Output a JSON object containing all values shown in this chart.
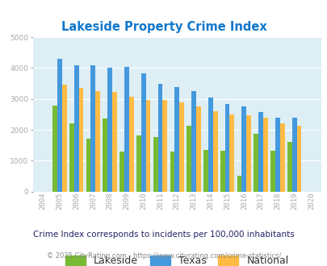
{
  "title": "Lakeside Property Crime Index",
  "years": [
    "2004",
    "2005",
    "2006",
    "2007",
    "2008",
    "2009",
    "2010",
    "2011",
    "2012",
    "2013",
    "2014",
    "2015",
    "2016",
    "2017",
    "2018",
    "2019",
    "2020"
  ],
  "lakeside": [
    0,
    2780,
    2200,
    1720,
    2370,
    1290,
    1830,
    1760,
    1290,
    2140,
    1350,
    1320,
    500,
    1860,
    1310,
    1620,
    0
  ],
  "texas": [
    0,
    4300,
    4080,
    4100,
    4000,
    4030,
    3830,
    3490,
    3380,
    3260,
    3050,
    2850,
    2770,
    2580,
    2390,
    2390,
    0
  ],
  "national": [
    0,
    3460,
    3360,
    3250,
    3240,
    3060,
    2970,
    2960,
    2900,
    2760,
    2610,
    2490,
    2460,
    2380,
    2200,
    2140,
    0
  ],
  "lakeside_color": "#77bb33",
  "texas_color": "#4499dd",
  "national_color": "#ffbb44",
  "bg_color": "#ddeef5",
  "title_color": "#1177cc",
  "ylim": [
    0,
    5000
  ],
  "yticks": [
    0,
    1000,
    2000,
    3000,
    4000,
    5000
  ],
  "legend_labels": [
    "Lakeside",
    "Texas",
    "National"
  ],
  "subtitle": "Crime Index corresponds to incidents per 100,000 inhabitants",
  "footer": "© 2025 CityRating.com - https://www.cityrating.com/crime-statistics/",
  "subtitle_color": "#222266",
  "footer_color": "#888888",
  "tick_color": "#aaaaaa"
}
